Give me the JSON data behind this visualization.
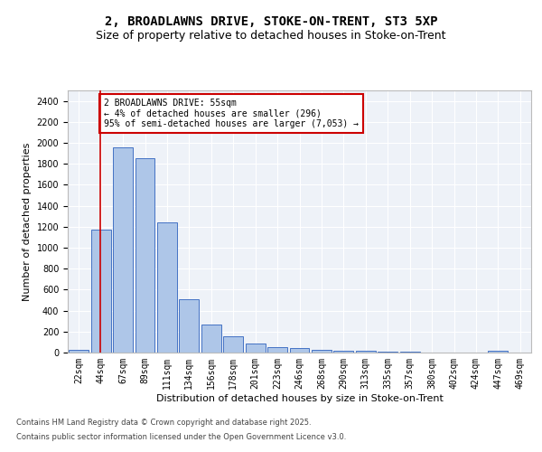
{
  "title_line1": "2, BROADLAWNS DRIVE, STOKE-ON-TRENT, ST3 5XP",
  "title_line2": "Size of property relative to detached houses in Stoke-on-Trent",
  "xlabel": "Distribution of detached houses by size in Stoke-on-Trent",
  "ylabel": "Number of detached properties",
  "categories": [
    "22sqm",
    "44sqm",
    "67sqm",
    "89sqm",
    "111sqm",
    "134sqm",
    "156sqm",
    "178sqm",
    "201sqm",
    "223sqm",
    "246sqm",
    "268sqm",
    "290sqm",
    "313sqm",
    "335sqm",
    "357sqm",
    "380sqm",
    "402sqm",
    "424sqm",
    "447sqm",
    "469sqm"
  ],
  "values": [
    30,
    1175,
    1960,
    1855,
    1240,
    510,
    270,
    155,
    90,
    50,
    42,
    28,
    15,
    15,
    5,
    5,
    2,
    2,
    1,
    14,
    2
  ],
  "bar_color": "#aec6e8",
  "bar_edge_color": "#4472c4",
  "background_color": "#eef2f8",
  "grid_color": "#ffffff",
  "annotation_text": "2 BROADLAWNS DRIVE: 55sqm\n← 4% of detached houses are smaller (296)\n95% of semi-detached houses are larger (7,053) →",
  "annotation_box_color": "#ffffff",
  "annotation_box_edge": "#cc0000",
  "red_line_color": "#cc0000",
  "ylim": [
    0,
    2500
  ],
  "yticks": [
    0,
    200,
    400,
    600,
    800,
    1000,
    1200,
    1400,
    1600,
    1800,
    2000,
    2200,
    2400
  ],
  "footer_line1": "Contains HM Land Registry data © Crown copyright and database right 2025.",
  "footer_line2": "Contains public sector information licensed under the Open Government Licence v3.0.",
  "title_fontsize": 10,
  "subtitle_fontsize": 9,
  "axis_label_fontsize": 8,
  "tick_fontsize": 7,
  "annotation_fontsize": 7,
  "footer_fontsize": 6
}
